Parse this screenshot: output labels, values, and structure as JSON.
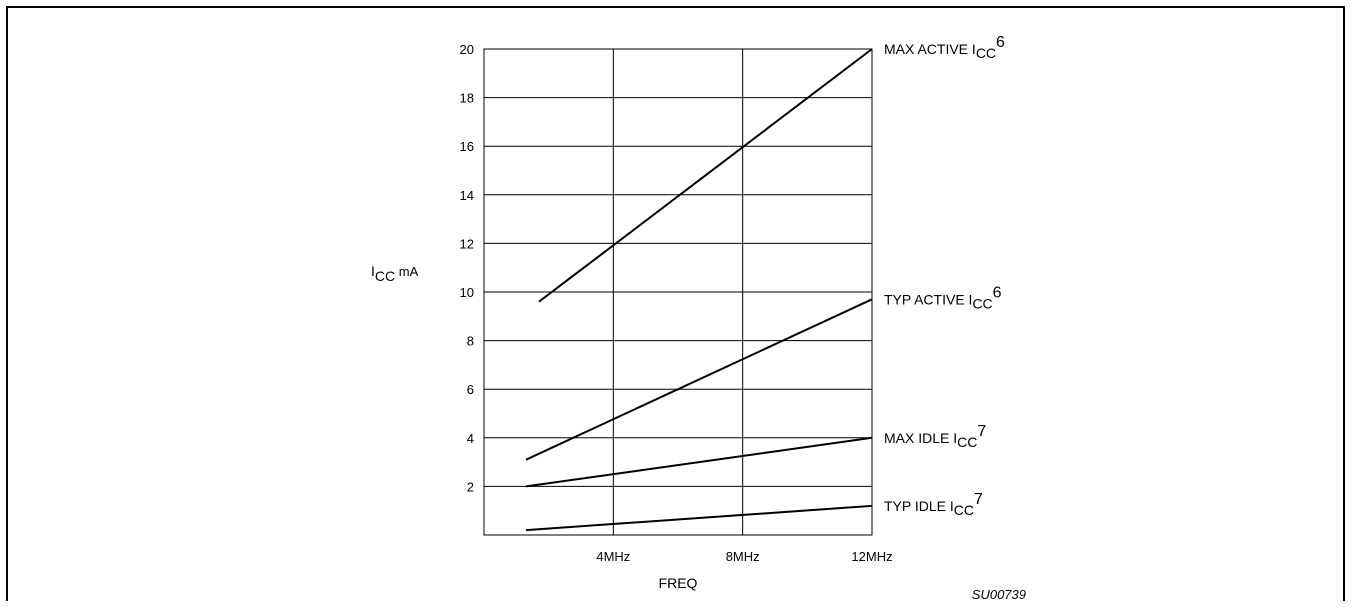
{
  "chart_data": {
    "type": "line",
    "title": "",
    "xlabel": "FREQ",
    "ylabel": {
      "main": "I",
      "sub": "CC",
      "unit": " mA"
    },
    "figure_id": "SU00739",
    "xlim": [
      0,
      12
    ],
    "ylim": [
      0,
      20
    ],
    "x_ticks": [
      {
        "value": 4,
        "label": "4MHz"
      },
      {
        "value": 8,
        "label": "8MHz"
      },
      {
        "value": 12,
        "label": "12MHz"
      }
    ],
    "y_ticks": [
      {
        "value": 2,
        "label": "2"
      },
      {
        "value": 4,
        "label": "4"
      },
      {
        "value": 6,
        "label": "6"
      },
      {
        "value": 8,
        "label": "8"
      },
      {
        "value": 10,
        "label": "10"
      },
      {
        "value": 12,
        "label": "12"
      },
      {
        "value": 14,
        "label": "14"
      },
      {
        "value": 16,
        "label": "16"
      },
      {
        "value": 18,
        "label": "18"
      },
      {
        "value": 20,
        "label": "20"
      }
    ],
    "grid": true,
    "series": [
      {
        "key": "max-active",
        "name": "MAX ACTIVE ",
        "sub": "CC",
        "sup": "6",
        "points": [
          [
            1.7,
            9.6
          ],
          [
            12,
            20
          ]
        ]
      },
      {
        "key": "typ-active",
        "name": "TYP ACTIVE ",
        "sub": "CC",
        "sup": "6",
        "points": [
          [
            1.3,
            3.1
          ],
          [
            12,
            9.7
          ]
        ]
      },
      {
        "key": "max-idle",
        "name": "MAX IDLE ",
        "sub": "CC",
        "sup": "7",
        "points": [
          [
            1.3,
            2.0
          ],
          [
            12,
            4.0
          ]
        ]
      },
      {
        "key": "typ-idle",
        "name": "TYP IDLE ",
        "sub": "CC",
        "sup": "7",
        "points": [
          [
            1.3,
            0.2
          ],
          [
            12,
            1.2
          ]
        ]
      }
    ]
  }
}
